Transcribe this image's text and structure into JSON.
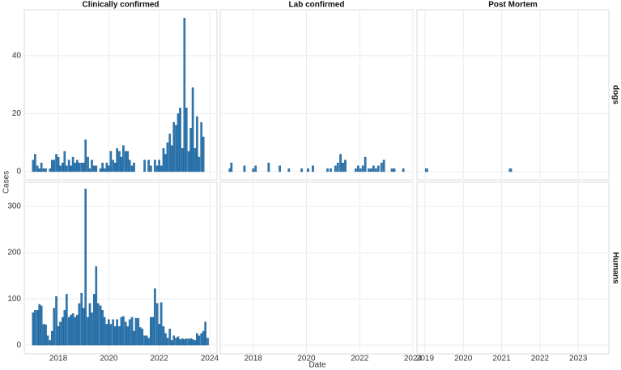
{
  "xlabel": "Date",
  "ylabel": "Cases",
  "facets": {
    "columns": [
      "Clinically confirmed",
      "Lab confirmed",
      "Post Mortem"
    ],
    "rows": [
      "dogs",
      "Humans"
    ]
  },
  "chart_data": [
    {
      "type": "bar",
      "color": "#2b7bba",
      "x": [
        2017.0,
        2017.08,
        2017.17,
        2017.25,
        2017.33,
        2017.42,
        2017.5,
        2017.58,
        2017.67,
        2017.75,
        2017.83,
        2017.92,
        2018.0,
        2018.08,
        2018.17,
        2018.25,
        2018.33,
        2018.42,
        2018.5,
        2018.58,
        2018.67,
        2018.75,
        2018.83,
        2018.92,
        2019.0,
        2019.08,
        2019.17,
        2019.25,
        2019.33,
        2019.42,
        2019.5,
        2019.58,
        2019.67,
        2019.75,
        2019.83,
        2019.92,
        2020.0,
        2020.08,
        2020.17,
        2020.25,
        2020.33,
        2020.42,
        2020.5,
        2020.58,
        2020.67,
        2020.75,
        2020.83,
        2020.92,
        2021.0,
        2021.08,
        2021.17,
        2021.25,
        2021.33,
        2021.42,
        2021.5,
        2021.58,
        2021.67,
        2021.75,
        2021.83,
        2021.92,
        2022.0,
        2022.08,
        2022.17,
        2022.25,
        2022.33,
        2022.42,
        2022.5,
        2022.58,
        2022.67,
        2022.75,
        2022.83,
        2022.92,
        2023.0,
        2023.08,
        2023.17,
        2023.25,
        2023.33,
        2023.42,
        2023.5,
        2023.58,
        2023.67,
        2023.75
      ],
      "values": [
        4,
        6,
        2,
        1,
        3,
        1,
        1,
        0,
        1,
        4,
        4,
        6,
        5,
        2,
        3,
        7,
        2,
        4,
        2,
        5,
        3,
        4,
        3,
        3,
        3,
        11,
        5,
        1,
        4,
        2,
        2,
        0,
        1,
        3,
        1,
        3,
        2,
        7,
        4,
        3,
        8,
        7,
        5,
        9,
        7,
        7,
        4,
        2,
        3,
        0,
        0,
        0,
        0,
        4,
        0,
        4,
        2,
        0,
        4,
        2,
        4,
        2,
        8,
        6,
        10,
        13,
        9,
        17,
        16,
        20,
        22,
        8,
        53,
        22,
        7,
        15,
        29,
        8,
        19,
        5,
        17,
        12
      ],
      "xlim": [
        2016.65,
        2024.29
      ],
      "ylim": [
        -2.8,
        55.9
      ],
      "yticks": [
        0,
        20,
        40
      ]
    },
    {
      "type": "bar",
      "color": "#2b7bba",
      "x": [
        2017.12,
        2017.18,
        2017.67,
        2018.0,
        2018.09,
        2018.58,
        2019.0,
        2019.34,
        2019.82,
        2020.06,
        2020.24,
        2020.79,
        2020.91,
        2021.09,
        2021.18,
        2021.28,
        2021.37,
        2021.46,
        2021.85,
        2021.94,
        2022.03,
        2022.12,
        2022.21,
        2022.34,
        2022.43,
        2022.52,
        2022.61,
        2022.7,
        2022.82,
        2022.91,
        2023.21,
        2023.3,
        2023.64
      ],
      "values": [
        1,
        3,
        2,
        1,
        2,
        3,
        2,
        1,
        1,
        1,
        2,
        1,
        1,
        2,
        3,
        6,
        3,
        4,
        1,
        2,
        1,
        2,
        5,
        1,
        1,
        2,
        1,
        2,
        3,
        4,
        1,
        1,
        1
      ],
      "xlim": [
        2016.76,
        2024.0
      ],
      "ylim": [
        -2.8,
        55.9
      ]
    },
    {
      "type": "bar",
      "color": "#2b7bba",
      "x": [
        2019.04,
        2021.23
      ],
      "values": [
        1,
        1
      ],
      "xlim": [
        2018.79,
        2023.8
      ],
      "ylim": [
        -2.8,
        55.9
      ]
    },
    {
      "type": "bar",
      "color": "#2b7bba",
      "x": [
        2017.0,
        2017.08,
        2017.17,
        2017.25,
        2017.33,
        2017.42,
        2017.5,
        2017.58,
        2017.67,
        2017.75,
        2017.83,
        2017.92,
        2018.0,
        2018.08,
        2018.17,
        2018.25,
        2018.33,
        2018.42,
        2018.5,
        2018.58,
        2018.67,
        2018.75,
        2018.83,
        2018.92,
        2019.0,
        2019.08,
        2019.17,
        2019.25,
        2019.33,
        2019.42,
        2019.5,
        2019.58,
        2019.67,
        2019.75,
        2019.83,
        2019.92,
        2020.0,
        2020.08,
        2020.17,
        2020.25,
        2020.33,
        2020.42,
        2020.5,
        2020.58,
        2020.67,
        2020.75,
        2020.83,
        2020.92,
        2021.0,
        2021.08,
        2021.17,
        2021.25,
        2021.33,
        2021.42,
        2021.5,
        2021.58,
        2021.67,
        2021.75,
        2021.83,
        2021.92,
        2022.0,
        2022.08,
        2022.17,
        2022.25,
        2022.33,
        2022.42,
        2022.5,
        2022.58,
        2022.67,
        2022.75,
        2022.83,
        2022.92,
        2023.0,
        2023.08,
        2023.17,
        2023.25,
        2023.33,
        2023.42,
        2023.5,
        2023.58,
        2023.67,
        2023.75,
        2023.83,
        2023.92
      ],
      "values": [
        70,
        75,
        75,
        88,
        85,
        45,
        44,
        20,
        10,
        30,
        80,
        105,
        40,
        50,
        60,
        75,
        110,
        60,
        65,
        68,
        60,
        65,
        90,
        112,
        80,
        338,
        60,
        90,
        70,
        110,
        170,
        90,
        85,
        75,
        60,
        45,
        55,
        45,
        55,
        40,
        55,
        40,
        60,
        62,
        50,
        40,
        55,
        60,
        30,
        58,
        58,
        38,
        35,
        20,
        20,
        15,
        60,
        60,
        122,
        90,
        45,
        92,
        40,
        25,
        15,
        35,
        10,
        20,
        15,
        18,
        12,
        14,
        12,
        14,
        13,
        14,
        12,
        10,
        25,
        20,
        25,
        30,
        50,
        15
      ],
      "xlim": [
        2016.65,
        2024.29
      ],
      "ylim": [
        -19,
        352.6
      ],
      "yticks": [
        0,
        100,
        200,
        300
      ],
      "xticks": [
        2018,
        2020,
        2022,
        2024
      ]
    },
    {
      "type": "bar",
      "color": "#2b7bba",
      "x": [],
      "values": [],
      "xlim": [
        2016.76,
        2024.0
      ],
      "ylim": [
        -19,
        352.6
      ],
      "xticks": [
        2018,
        2020,
        2022,
        2024
      ]
    },
    {
      "type": "bar",
      "color": "#2b7bba",
      "x": [],
      "values": [],
      "xlim": [
        2018.79,
        2023.8
      ],
      "ylim": [
        -19,
        352.6
      ],
      "xticks": [
        2019,
        2020,
        2021,
        2022,
        2023
      ]
    }
  ]
}
